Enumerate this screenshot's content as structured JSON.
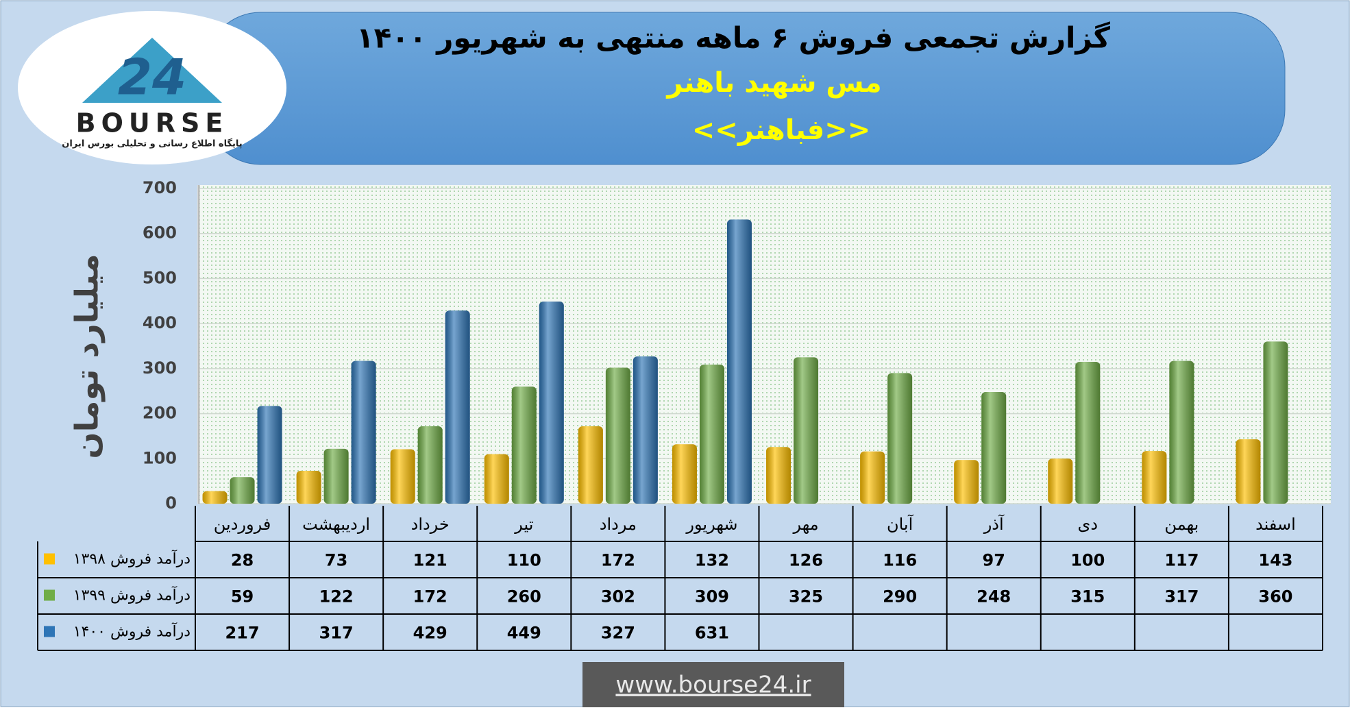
{
  "logo": {
    "mark": "24",
    "name": "BOURSE",
    "tagline": "پایگاه اطلاع رسانی و تحلیلی بورس ایران"
  },
  "footer": {
    "url": "www.bourse24.ir"
  },
  "chart_data": {
    "type": "bar",
    "title": "گزارش تجمعی فروش ۶ ماهه منتهی به شهریور ۱۴۰۰",
    "subtitle": "مس شهید باهنر",
    "symbol": "<<فباهنر>>",
    "y_label": "میلیارد تومان",
    "categories": [
      "فروردین",
      "اردیبهشت",
      "خرداد",
      "تیر",
      "مرداد",
      "شهریور",
      "مهر",
      "آبان",
      "آذر",
      "دی",
      "بهمن",
      "اسفند"
    ],
    "series": [
      {
        "name": "درآمد فروش ۱۳۹۸",
        "color": "#ffc000",
        "values": [
          28,
          73,
          121,
          110,
          172,
          132,
          126,
          116,
          97,
          100,
          117,
          143
        ]
      },
      {
        "name": "درآمد فروش ۱۳۹۹",
        "color": "#70ad47",
        "values": [
          59,
          122,
          172,
          260,
          302,
          309,
          325,
          290,
          248,
          315,
          317,
          360
        ]
      },
      {
        "name": "درآمد فروش ۱۴۰۰",
        "color": "#2e75b6",
        "values": [
          217,
          317,
          429,
          449,
          327,
          631,
          null,
          null,
          null,
          null,
          null,
          null
        ]
      }
    ],
    "ylim": [
      0,
      700
    ],
    "yticks": [
      0,
      100,
      200,
      300,
      400,
      500,
      600,
      700
    ],
    "grid": true,
    "data_table": true
  }
}
